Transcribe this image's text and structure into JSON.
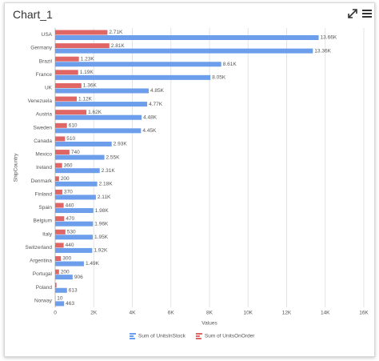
{
  "chart_data": {
    "type": "bar",
    "title": "Chart_1",
    "x_label": "Values",
    "y_label": "ShipCountry",
    "categories": [
      "USA",
      "Germany",
      "Brazil",
      "France",
      "UK",
      "Venezuela",
      "Austria",
      "Sweden",
      "Canada",
      "Mexico",
      "Ireland",
      "Denmark",
      "Finland",
      "Spain",
      "Belgium",
      "Italy",
      "Switzerland",
      "Argentina",
      "Portugal",
      "Poland",
      "Norway"
    ],
    "series": [
      {
        "name": "Sum of UnitsInStock",
        "color": "#6d9eeb",
        "values": [
          13660,
          13360,
          8610,
          8050,
          4850,
          4770,
          4480,
          4450,
          2930,
          2550,
          2310,
          2180,
          2110,
          1980,
          1960,
          1950,
          1920,
          1490,
          906,
          613,
          463
        ],
        "value_labels": [
          "13.66K",
          "13.36K",
          "8.61K",
          "8.05K",
          "4.85K",
          "4.77K",
          "4.48K",
          "4.45K",
          "2.93K",
          "2.55K",
          "2.31K",
          "2.18K",
          "2.11K",
          "1.98K",
          "1.96K",
          "1.95K",
          "1.92K",
          "1.49K",
          "906",
          "613",
          "463"
        ]
      },
      {
        "name": "Sum of UnitsOnOrder",
        "color": "#e06666",
        "values": [
          2710,
          2810,
          1230,
          1190,
          1360,
          1120,
          1620,
          610,
          510,
          740,
          360,
          200,
          370,
          440,
          470,
          530,
          440,
          300,
          200,
          70,
          10
        ],
        "value_labels": [
          "2.71K",
          "2.81K",
          "1.23K",
          "1.19K",
          "1.36K",
          "1.12K",
          "1.62K",
          "610",
          "510",
          "740",
          "360",
          "200",
          "370",
          "440",
          "470",
          "530",
          "440",
          "300",
          "200",
          null,
          "10"
        ]
      }
    ],
    "xlim": [
      0,
      16000
    ],
    "xticks": [
      0,
      {
        "value": 2000,
        "label": "2K"
      },
      {
        "value": 4000,
        "label": "4K"
      },
      {
        "value": 6000,
        "label": "6K"
      },
      {
        "value": 8000,
        "label": "8K"
      },
      {
        "value": 10000,
        "label": "10K"
      },
      {
        "value": 12000,
        "label": "12K"
      },
      {
        "value": 14000,
        "label": "14K"
      },
      {
        "value": 16000,
        "label": "16K"
      }
    ],
    "grid": true
  }
}
